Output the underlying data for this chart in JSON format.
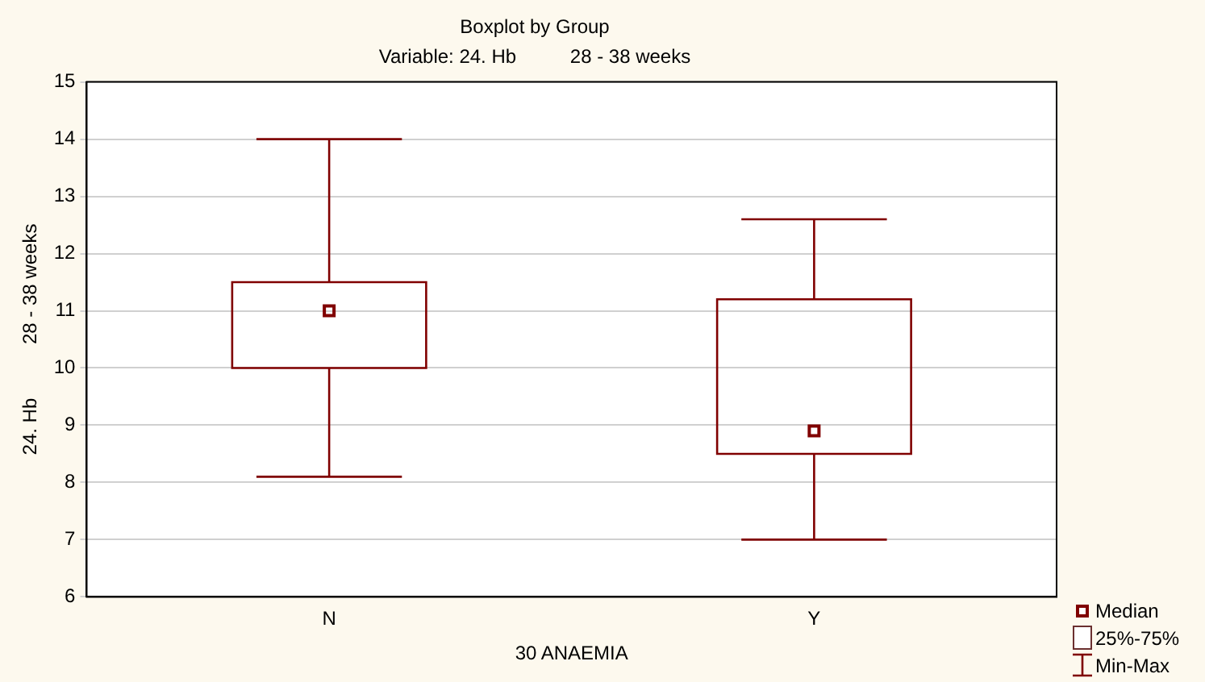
{
  "chart_data": {
    "type": "box",
    "title": "Boxplot by Group",
    "subtitle": "Variable: 24. Hb          28 - 38 weeks",
    "xlabel": "30 ANAEMIA",
    "ylabel": "24. Hb          28 - 38 weeks",
    "categories": [
      "N",
      "Y"
    ],
    "series": [
      {
        "color": "#800000",
        "boxes": [
          {
            "low": 8.1,
            "q1": 10,
            "median": 11.0,
            "q3": 11.5,
            "high": 14
          },
          {
            "low": 7,
            "q1": 8.5,
            "median": 8.9,
            "q3": 11.2,
            "high": 12.6
          }
        ]
      }
    ],
    "ylim": [
      6,
      15
    ],
    "yticks": [
      6,
      7,
      8,
      9,
      10,
      11,
      12,
      13,
      14,
      15
    ],
    "grid": "y",
    "marker": "square",
    "annotations": [
      "Median",
      "25%-75%",
      "Min-Max"
    ]
  }
}
